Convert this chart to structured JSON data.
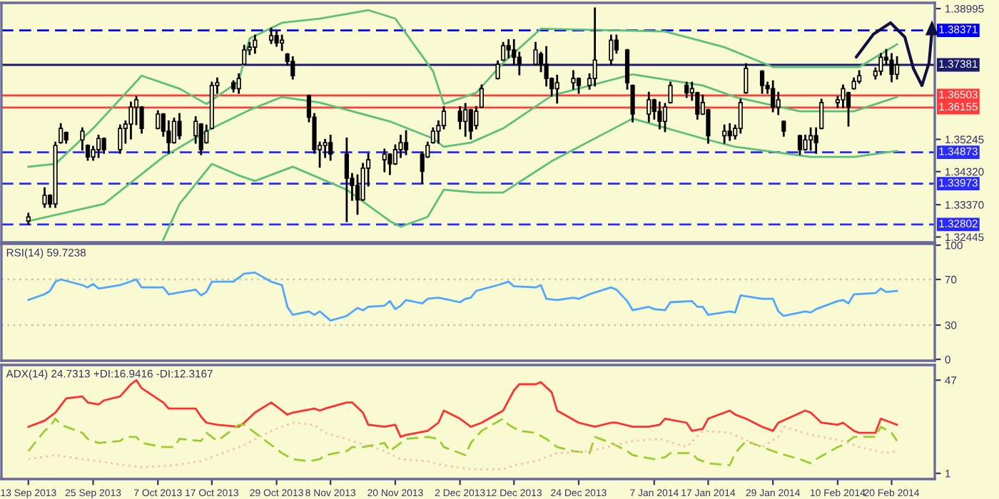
{
  "chart_data": [
    {
      "type": "candlestick",
      "color": "#000000",
      "x": [
        "2013-09-13",
        "2013-09-16",
        "2013-09-17",
        "2013-09-18",
        "2013-09-19",
        "2013-09-20",
        "2013-09-23",
        "2013-09-24",
        "2013-09-25",
        "2013-09-26",
        "2013-09-27",
        "2013-09-30",
        "2013-10-01",
        "2013-10-02",
        "2013-10-03",
        "2013-10-04",
        "2013-10-07",
        "2013-10-08",
        "2013-10-09",
        "2013-10-10",
        "2013-10-11",
        "2013-10-14",
        "2013-10-15",
        "2013-10-16",
        "2013-10-17",
        "2013-10-18",
        "2013-10-21",
        "2013-10-22",
        "2013-10-23",
        "2013-10-24",
        "2013-10-25",
        "2013-10-28",
        "2013-10-29",
        "2013-10-30",
        "2013-10-31",
        "2013-11-01",
        "2013-11-04",
        "2013-11-05",
        "2013-11-06",
        "2013-11-07",
        "2013-11-08",
        "2013-11-11",
        "2013-11-12",
        "2013-11-13",
        "2013-11-14",
        "2013-11-15",
        "2013-11-18",
        "2013-11-19",
        "2013-11-20",
        "2013-11-21",
        "2013-11-22",
        "2013-11-25",
        "2013-11-26",
        "2013-11-27",
        "2013-11-28",
        "2013-11-29",
        "2013-12-02",
        "2013-12-03",
        "2013-12-04",
        "2013-12-05",
        "2013-12-06",
        "2013-12-09",
        "2013-12-10",
        "2013-12-11",
        "2013-12-12",
        "2013-12-13",
        "2013-12-16",
        "2013-12-17",
        "2013-12-18",
        "2013-12-19",
        "2013-12-20",
        "2013-12-23",
        "2013-12-24",
        "2013-12-26",
        "2013-12-27",
        "2013-12-30",
        "2013-12-31",
        "2014-01-02",
        "2014-01-03",
        "2014-01-06",
        "2014-01-07",
        "2014-01-08",
        "2014-01-09",
        "2014-01-10",
        "2014-01-13",
        "2014-01-14",
        "2014-01-15",
        "2014-01-16",
        "2014-01-17",
        "2014-01-20",
        "2014-01-21",
        "2014-01-22",
        "2014-01-23",
        "2014-01-24",
        "2014-01-27",
        "2014-01-28",
        "2014-01-29",
        "2014-01-30",
        "2014-01-31",
        "2014-02-03",
        "2014-02-04",
        "2014-02-05",
        "2014-02-06",
        "2014-02-07",
        "2014-02-10",
        "2014-02-11",
        "2014-02-12",
        "2014-02-13",
        "2014-02-14",
        "2014-02-17",
        "2014-02-18",
        "2014-02-19",
        "2014-02-20",
        "2014-02-21"
      ],
      "ohlc": [
        [
          1.329,
          1.3311,
          1.3282,
          1.3302
        ],
        [
          1.3339,
          1.3384,
          1.3331,
          1.3364
        ],
        [
          1.3364,
          1.3364,
          1.3331,
          1.3339
        ],
        [
          1.3339,
          1.3515,
          1.3331,
          1.3507
        ],
        [
          1.3515,
          1.3568,
          1.3515,
          1.3556
        ],
        [
          1.3544,
          1.3544,
          1.3515,
          1.3523
        ],
        [
          1.3523,
          1.3556,
          1.3495,
          1.3548
        ],
        [
          1.3507,
          1.3507,
          1.3466,
          1.3474
        ],
        [
          1.3474,
          1.3503,
          1.3466,
          1.3495
        ],
        [
          1.3495,
          1.3535,
          1.3474,
          1.3527
        ],
        [
          1.3527,
          1.3527,
          1.3486,
          1.3495
        ],
        [
          1.3495,
          1.3564,
          1.3486,
          1.3556
        ],
        [
          1.3556,
          1.3576,
          1.3515,
          1.3568
        ],
        [
          1.3568,
          1.363,
          1.3527,
          1.3617
        ],
        [
          1.3617,
          1.3646,
          1.3568,
          1.3638
        ],
        [
          1.3617,
          1.3617,
          1.3544,
          1.3556
        ],
        [
          1.3556,
          1.3605,
          1.3556,
          1.3597
        ],
        [
          1.3597,
          1.3597,
          1.3535,
          1.3548
        ],
        [
          1.3548,
          1.3576,
          1.3486,
          1.3515
        ],
        [
          1.3515,
          1.3584,
          1.3515,
          1.3576
        ],
        [
          1.3576,
          1.3597,
          1.3527,
          1.3535
        ],
        [
          1.3535,
          1.3588,
          1.3515,
          1.3576
        ],
        [
          1.3568,
          1.3568,
          1.3482,
          1.3495
        ],
        [
          1.3515,
          1.3564,
          1.3515,
          1.3548
        ],
        [
          1.3556,
          1.3687,
          1.3556,
          1.3679
        ],
        [
          1.3679,
          1.3699,
          1.3658,
          1.3687
        ],
        [
          1.3687,
          1.3691,
          1.3662,
          1.367
        ],
        [
          1.367,
          1.3711,
          1.3658,
          1.3699
        ],
        [
          1.374,
          1.3793,
          1.374,
          1.3781
        ],
        [
          1.3781,
          1.3801,
          1.3769,
          1.3789
        ],
        [
          1.3789,
          1.3822,
          1.3773,
          1.3809
        ],
        [
          1.3809,
          1.3842,
          1.3801,
          1.3822
        ],
        [
          1.3822,
          1.3834,
          1.3793,
          1.3801
        ],
        [
          1.3801,
          1.3822,
          1.3781,
          1.3809
        ],
        [
          1.3769,
          1.3769,
          1.374,
          1.3748
        ],
        [
          1.3748,
          1.376,
          1.3699,
          1.3707
        ],
        [
          1.365,
          1.365,
          1.3576,
          1.3588
        ],
        [
          1.3588,
          1.3597,
          1.3486,
          1.3495
        ],
        [
          1.3495,
          1.3515,
          1.3446,
          1.3507
        ],
        [
          1.3507,
          1.3523,
          1.3474,
          1.3515
        ],
        [
          1.3515,
          1.3535,
          1.3466,
          1.3482
        ],
        [
          1.3482,
          1.3527,
          1.329,
          1.3413
        ],
        [
          1.3413,
          1.3425,
          1.3351,
          1.3392
        ],
        [
          1.3392,
          1.3421,
          1.3311,
          1.3351
        ],
        [
          1.3351,
          1.3454,
          1.3351,
          1.3442
        ],
        [
          1.3442,
          1.3482,
          1.3392,
          1.3466
        ],
        [
          1.3466,
          1.3495,
          1.3433,
          1.3482
        ],
        [
          1.3482,
          1.3482,
          1.3425,
          1.3454
        ],
        [
          1.3454,
          1.3507,
          1.3454,
          1.3495
        ],
        [
          1.3495,
          1.3535,
          1.3474,
          1.3515
        ],
        [
          1.3515,
          1.3548,
          1.3482,
          1.3495
        ],
        [
          1.3482,
          1.3486,
          1.34,
          1.3433
        ],
        [
          1.3474,
          1.3515,
          1.3474,
          1.3507
        ],
        [
          1.3515,
          1.3556,
          1.3515,
          1.3548
        ],
        [
          1.3548,
          1.3576,
          1.3515,
          1.3564
        ],
        [
          1.3564,
          1.3617,
          1.3556,
          1.3605
        ],
        [
          1.3605,
          1.3617,
          1.3556,
          1.3576
        ],
        [
          1.3576,
          1.3626,
          1.3535,
          1.3609
        ],
        [
          1.3609,
          1.3609,
          1.3527,
          1.3548
        ],
        [
          1.3564,
          1.3617,
          1.3556,
          1.3605
        ],
        [
          1.3617,
          1.3679,
          1.3617,
          1.367
        ],
        [
          1.3699,
          1.3748,
          1.3699,
          1.374
        ],
        [
          1.3752,
          1.3801,
          1.3752,
          1.3793
        ],
        [
          1.3793,
          1.3809,
          1.376,
          1.3781
        ],
        [
          1.3781,
          1.3809,
          1.374,
          1.376
        ],
        [
          1.376,
          1.3773,
          1.3711,
          1.374
        ],
        [
          1.374,
          1.3801,
          1.374,
          1.3781
        ],
        [
          1.3769,
          1.3773,
          1.372,
          1.374
        ],
        [
          1.374,
          1.3789,
          1.3679,
          1.3699
        ],
        [
          1.3699,
          1.3699,
          1.365,
          1.367
        ],
        [
          1.367,
          1.3707,
          1.363,
          1.3687
        ],
        [
          1.3687,
          1.372,
          1.367,
          1.3699
        ],
        [
          1.3699,
          1.3699,
          1.3658,
          1.3679
        ],
        [
          1.3679,
          1.3711,
          1.367,
          1.3699
        ],
        [
          1.3699,
          1.39,
          1.3679,
          1.3752
        ],
        [
          1.3752,
          1.3822,
          1.374,
          1.3809
        ],
        [
          1.3809,
          1.3822,
          1.3773,
          1.3781
        ],
        [
          1.3781,
          1.3781,
          1.367,
          1.3687
        ],
        [
          1.3679,
          1.3679,
          1.3576,
          1.3597
        ],
        [
          1.3597,
          1.3658,
          1.3576,
          1.3638
        ],
        [
          1.3638,
          1.3638,
          1.3584,
          1.3605
        ],
        [
          1.3605,
          1.363,
          1.3556,
          1.3576
        ],
        [
          1.3576,
          1.3626,
          1.3548,
          1.3617
        ],
        [
          1.363,
          1.3687,
          1.363,
          1.3679
        ],
        [
          1.3679,
          1.3687,
          1.3646,
          1.3658
        ],
        [
          1.3658,
          1.3687,
          1.3638,
          1.367
        ],
        [
          1.3658,
          1.3658,
          1.3584,
          1.3597
        ],
        [
          1.3597,
          1.365,
          1.3597,
          1.363
        ],
        [
          1.3609,
          1.3609,
          1.3515,
          1.3535
        ],
        [
          1.3535,
          1.3564,
          1.3515,
          1.3548
        ],
        [
          1.3548,
          1.3568,
          1.3523,
          1.3535
        ],
        [
          1.3535,
          1.3564,
          1.3527,
          1.3556
        ],
        [
          1.3556,
          1.3638,
          1.3544,
          1.363
        ],
        [
          1.3658,
          1.374,
          1.3658,
          1.3728
        ],
        [
          1.372,
          1.372,
          1.3658,
          1.3679
        ],
        [
          1.3679,
          1.3687,
          1.3658,
          1.367
        ],
        [
          1.367,
          1.3691,
          1.3605,
          1.3617
        ],
        [
          1.3617,
          1.3658,
          1.3597,
          1.3638
        ],
        [
          1.3576,
          1.3576,
          1.3535,
          1.3548
        ],
        [
          1.3535,
          1.3535,
          1.3482,
          1.3495
        ],
        [
          1.3495,
          1.3535,
          1.3495,
          1.3523
        ],
        [
          1.3523,
          1.3556,
          1.3495,
          1.3535
        ],
        [
          1.3535,
          1.3556,
          1.3486,
          1.3515
        ],
        [
          1.3556,
          1.3638,
          1.3556,
          1.363
        ],
        [
          1.363,
          1.3646,
          1.3617,
          1.3638
        ],
        [
          1.3638,
          1.3679,
          1.3617,
          1.367
        ],
        [
          1.3658,
          1.3658,
          1.3564,
          1.3617
        ],
        [
          1.367,
          1.3699,
          1.367,
          1.3691
        ],
        [
          1.3691,
          1.372,
          1.3687,
          1.3707
        ],
        [
          1.3707,
          1.3728,
          1.3699,
          1.372
        ],
        [
          1.372,
          1.3769,
          1.3711,
          1.376
        ],
        [
          1.376,
          1.3781,
          1.374,
          1.3752
        ],
        [
          1.3752,
          1.3769,
          1.3691,
          1.3711
        ],
        [
          1.3711,
          1.376,
          1.3699,
          1.3738
        ]
      ],
      "series": [
        {
          "type": "line",
          "color": "#5cbf7a",
          "x": [
            "2013-09-13",
            "2013-09-18",
            "2013-09-25",
            "2013-10-04",
            "2013-10-11",
            "2013-10-16",
            "2013-10-22",
            "2013-10-24",
            "2013-10-30",
            "2013-11-06",
            "2013-11-15",
            "2013-11-20",
            "2013-11-27",
            "2013-11-29",
            "2013-12-05",
            "2013-12-10",
            "2013-12-17",
            "2014-01-09",
            "2014-01-20",
            "2014-01-29",
            "2014-02-14",
            "2014-02-21"
          ],
          "values": [
            1.3446,
            1.3454,
            1.3556,
            1.3707,
            1.367,
            1.3626,
            1.3691,
            1.3814,
            1.3859,
            1.3871,
            1.3895,
            1.3871,
            1.372,
            1.3626,
            1.3658,
            1.3744,
            1.3842,
            1.3834,
            1.3789,
            1.3732,
            1.3732,
            1.3797
          ]
        },
        {
          "type": "line",
          "color": "#5cbf7a",
          "x": [
            "2013-09-13",
            "2013-09-19",
            "2013-09-27",
            "2013-10-08",
            "2013-10-17",
            "2013-10-24",
            "2013-10-30",
            "2013-11-06",
            "2013-11-19",
            "2013-11-27",
            "2013-11-29",
            "2013-12-04",
            "2013-12-10",
            "2013-12-19",
            "2014-01-03",
            "2014-01-16",
            "2014-01-22",
            "2014-02-03",
            "2014-02-13",
            "2014-02-21"
          ],
          "values": [
            1.329,
            1.3311,
            1.3339,
            1.3474,
            1.3556,
            1.3609,
            1.3646,
            1.363,
            1.3576,
            1.3527,
            1.3503,
            1.3515,
            1.3556,
            1.365,
            1.3711,
            1.3679,
            1.3646,
            1.3605,
            1.3605,
            1.3646
          ]
        },
        {
          "type": "line",
          "color": "#5cbf7a",
          "x": [
            "2013-10-08",
            "2013-10-11",
            "2013-10-17",
            "2013-10-22",
            "2013-10-25",
            "2013-11-01",
            "2013-11-11",
            "2013-11-19",
            "2013-11-21",
            "2013-11-26",
            "2013-11-29",
            "2013-12-05",
            "2013-12-10",
            "2013-12-19",
            "2014-01-03",
            "2014-01-16",
            "2014-01-22",
            "2014-02-05",
            "2014-02-13",
            "2014-02-21"
          ],
          "values": [
            1.3237,
            1.3339,
            1.3454,
            1.3421,
            1.3405,
            1.3446,
            1.338,
            1.329,
            1.3274,
            1.3302,
            1.338,
            1.3372,
            1.3372,
            1.3462,
            1.3584,
            1.3527,
            1.3503,
            1.3474,
            1.3474,
            1.3491
          ]
        }
      ],
      "ref_lines": [
        {
          "axis": "y",
          "value": 1.38371,
          "label": "1.38371",
          "color": "#0000ff",
          "line_style": "dashed"
        },
        {
          "axis": "y",
          "value": 1.37381,
          "label": "1.37381",
          "color": "#1a1a6e",
          "line_style": "solid"
        },
        {
          "axis": "y",
          "value": 1.36503,
          "label": "1.36503",
          "color": "#ff3b3b",
          "line_style": "solid"
        },
        {
          "axis": "y",
          "value": 1.36155,
          "label": "1.36155",
          "color": "#ff3b3b",
          "line_style": "solid"
        },
        {
          "axis": "y",
          "value": 1.34873,
          "label": "1.34873",
          "color": "#2a2aff",
          "line_style": "dashed"
        },
        {
          "axis": "y",
          "value": 1.33973,
          "label": "1.33973",
          "color": "#2a2aff",
          "line_style": "dashed"
        },
        {
          "axis": "y",
          "value": 1.32802,
          "label": "1.32802",
          "color": "#2a2aff",
          "line_style": "dashed"
        }
      ],
      "xlim": [
        "2013-09-08",
        "2014-02-28"
      ],
      "ylim": [
        1.3229,
        1.3916
      ],
      "yticks": [
        1.38995,
        1.35245,
        {
          "value": 1.3432,
          "label": "1.34320"
        },
        {
          "value": 1.3337,
          "label": "1.33370"
        },
        1.32445
      ],
      "tick_labels": "y"
    },
    {
      "type": "line",
      "annotations": [
        "RSI(14) 59.7238"
      ],
      "series": [
        {
          "color": "#4da6ff",
          "x": [
            "2013-09-13",
            "2013-09-16",
            "2013-09-17",
            "2013-09-18",
            "2013-09-19",
            "2013-09-23",
            "2013-09-24",
            "2013-09-25",
            "2013-09-26",
            "2013-09-30",
            "2013-10-03",
            "2013-10-04",
            "2013-10-08",
            "2013-10-09",
            "2013-10-14",
            "2013-10-15",
            "2013-10-16",
            "2013-10-17",
            "2013-10-21",
            "2013-10-23",
            "2013-10-25",
            "2013-10-28",
            "2013-10-30",
            "2013-10-31",
            "2013-11-01",
            "2013-11-04",
            "2013-11-05",
            "2013-11-06",
            "2013-11-07",
            "2013-11-08",
            "2013-11-11",
            "2013-11-13",
            "2013-11-14",
            "2013-11-15",
            "2013-11-18",
            "2013-11-19",
            "2013-11-20",
            "2013-11-21",
            "2013-11-22",
            "2013-11-25",
            "2013-11-26",
            "2013-11-28",
            "2013-11-29",
            "2013-12-02",
            "2013-12-03",
            "2013-12-04",
            "2013-12-05",
            "2013-12-09",
            "2013-12-11",
            "2013-12-12",
            "2013-12-16",
            "2013-12-17",
            "2013-12-18",
            "2013-12-20",
            "2013-12-23",
            "2013-12-24",
            "2013-12-26",
            "2013-12-30",
            "2013-12-31",
            "2014-01-02",
            "2014-01-03",
            "2014-01-06",
            "2014-01-07",
            "2014-01-09",
            "2014-01-10",
            "2014-01-14",
            "2014-01-15",
            "2014-01-16",
            "2014-01-17",
            "2014-01-21",
            "2014-01-22",
            "2014-01-23",
            "2014-01-27",
            "2014-01-28",
            "2014-01-29",
            "2014-01-30",
            "2014-01-31",
            "2014-02-04",
            "2014-02-05",
            "2014-02-06",
            "2014-02-10",
            "2014-02-11",
            "2014-02-12",
            "2014-02-13",
            "2014-02-17",
            "2014-02-18",
            "2014-02-19",
            "2014-02-21"
          ],
          "values": [
            52,
            57,
            60,
            68,
            70,
            65,
            63,
            66,
            62,
            65,
            70,
            63,
            63,
            57,
            61,
            56,
            59,
            68,
            68,
            75,
            76,
            68,
            65,
            46,
            39,
            42,
            39,
            42,
            38,
            34,
            38,
            45,
            43,
            46,
            47,
            51,
            44,
            47,
            52,
            49,
            53,
            54,
            53,
            50,
            53,
            54,
            60,
            65,
            68,
            64,
            63,
            65,
            53,
            52,
            54,
            53,
            57,
            63,
            61,
            51,
            43,
            46,
            44,
            43,
            50,
            51,
            46,
            46,
            39,
            42,
            41,
            56,
            53,
            53,
            53,
            42,
            38,
            42,
            41,
            44,
            51,
            52,
            49,
            57,
            58,
            62,
            59,
            60
          ]
        }
      ],
      "ref_lines": [
        {
          "axis": "y",
          "value": 70,
          "color": "#c8c8b0",
          "line_style": "dotted"
        },
        {
          "axis": "y",
          "value": 30,
          "color": "#c8c8b0",
          "line_style": "dotted"
        }
      ],
      "xlim": [
        "2013-09-08",
        "2014-02-28"
      ],
      "ylim": [
        -1.2,
        101.2
      ],
      "yticks": [
        0,
        30,
        70,
        100
      ],
      "tick_labels": "y"
    },
    {
      "type": "line",
      "annotations": [
        "ADX(14) 24.7313 +DI:16.9416 -DI:12.3167"
      ],
      "series": [
        {
          "color": "#ff3030",
          "line_style": "solid",
          "x": [
            "2013-09-13",
            "2013-09-16",
            "2013-09-18",
            "2013-09-20",
            "2013-09-23",
            "2013-09-24",
            "2013-09-26",
            "2013-09-27",
            "2013-09-30",
            "2013-10-02",
            "2013-10-03",
            "2013-10-04",
            "2013-10-08",
            "2013-10-09",
            "2013-10-10",
            "2013-10-14",
            "2013-10-15",
            "2013-10-16",
            "2013-10-18",
            "2013-10-22",
            "2013-10-23",
            "2013-10-25",
            "2013-10-28",
            "2013-10-30",
            "2013-10-31",
            "2013-11-01",
            "2013-11-05",
            "2013-11-06",
            "2013-11-07",
            "2013-11-11",
            "2013-11-12",
            "2013-11-14",
            "2013-11-15",
            "2013-11-18",
            "2013-11-20",
            "2013-11-21",
            "2013-11-22",
            "2013-11-26",
            "2013-11-28",
            "2013-11-29",
            "2013-12-02",
            "2013-12-04",
            "2013-12-06",
            "2013-12-10",
            "2013-12-12",
            "2013-12-13",
            "2013-12-16",
            "2013-12-17",
            "2013-12-19",
            "2013-12-20",
            "2013-12-24",
            "2013-12-27",
            "2013-12-30",
            "2013-12-31",
            "2014-01-03",
            "2014-01-06",
            "2014-01-08",
            "2014-01-09",
            "2014-01-13",
            "2014-01-14",
            "2014-01-16",
            "2014-01-17",
            "2014-01-21",
            "2014-01-22",
            "2014-01-24",
            "2014-01-27",
            "2014-01-29",
            "2014-01-30",
            "2014-02-04",
            "2014-02-05",
            "2014-02-07",
            "2014-02-10",
            "2014-02-11",
            "2014-02-13",
            "2014-02-14",
            "2014-02-17",
            "2014-02-18",
            "2014-02-20",
            "2014-02-21"
          ],
          "values": [
            24,
            27,
            31,
            38,
            39,
            36,
            35,
            37,
            39,
            45,
            47,
            43,
            36,
            33,
            33,
            33,
            29,
            26,
            25,
            24,
            26,
            31,
            36,
            32,
            30,
            31,
            33,
            32,
            33,
            36,
            36,
            31,
            25,
            24,
            25,
            19,
            20,
            22,
            26,
            32,
            28,
            24,
            26,
            32,
            42,
            45,
            45,
            46,
            41,
            32,
            26,
            24,
            26,
            26,
            24,
            24,
            25,
            28,
            26,
            22,
            23,
            28,
            32,
            30,
            28,
            24,
            22,
            26,
            32,
            31,
            26,
            25,
            26,
            22,
            21,
            21,
            28,
            26,
            25
          ]
        },
        {
          "color": "#9acd32",
          "line_style": "dashed",
          "x": [
            "2013-09-13",
            "2013-09-16",
            "2013-09-17",
            "2013-09-18",
            "2013-09-19",
            "2013-09-23",
            "2013-09-24",
            "2013-09-26",
            "2013-09-30",
            "2013-10-01",
            "2013-10-03",
            "2013-10-04",
            "2013-10-08",
            "2013-10-10",
            "2013-10-11",
            "2013-10-15",
            "2013-10-16",
            "2013-10-18",
            "2013-10-22",
            "2013-10-23",
            "2013-10-25",
            "2013-10-28",
            "2013-10-30",
            "2013-11-01",
            "2013-11-04",
            "2013-11-06",
            "2013-11-07",
            "2013-11-11",
            "2013-11-12",
            "2013-11-14",
            "2013-11-18",
            "2013-11-19",
            "2013-11-21",
            "2013-11-22",
            "2013-11-26",
            "2013-11-28",
            "2013-11-29",
            "2013-12-03",
            "2013-12-04",
            "2013-12-06",
            "2013-12-10",
            "2013-12-11",
            "2013-12-13",
            "2013-12-16",
            "2013-12-18",
            "2013-12-20",
            "2013-12-23",
            "2013-12-26",
            "2013-12-27",
            "2013-12-30",
            "2014-01-02",
            "2014-01-03",
            "2014-01-07",
            "2014-01-09",
            "2014-01-10",
            "2014-01-14",
            "2014-01-15",
            "2014-01-17",
            "2014-01-21",
            "2014-01-22",
            "2014-01-24",
            "2014-01-27",
            "2014-01-29",
            "2014-01-30",
            "2014-02-03",
            "2014-02-05",
            "2014-02-06",
            "2014-02-10",
            "2014-02-11",
            "2014-02-13",
            "2014-02-17",
            "2014-02-18",
            "2014-02-20",
            "2014-02-21"
          ],
          "values": [
            12,
            22,
            24,
            28,
            25,
            21,
            18,
            16,
            17,
            19,
            19,
            16,
            14,
            14,
            18,
            17,
            21,
            17,
            25,
            25,
            21,
            15,
            11,
            8,
            7,
            8,
            10,
            12,
            14,
            14,
            16,
            12,
            16,
            18,
            19,
            18,
            14,
            10,
            16,
            22,
            28,
            25,
            22,
            21,
            18,
            14,
            12,
            11,
            19,
            16,
            12,
            10,
            8,
            9,
            11,
            11,
            8,
            6,
            5,
            11,
            17,
            14,
            12,
            11,
            8,
            6,
            8,
            14,
            15,
            19,
            19,
            24,
            21,
            17
          ]
        },
        {
          "color": "#f2c2aa",
          "line_style": "dotted",
          "x": [
            "2013-09-13",
            "2013-09-18",
            "2013-09-23",
            "2013-09-26",
            "2013-10-01",
            "2013-10-04",
            "2013-10-10",
            "2013-10-15",
            "2013-10-18",
            "2013-10-23",
            "2013-10-28",
            "2013-11-01",
            "2013-11-05",
            "2013-11-07",
            "2013-11-12",
            "2013-11-18",
            "2013-11-21",
            "2013-11-26",
            "2013-11-29",
            "2013-12-04",
            "2013-12-10",
            "2013-12-12",
            "2013-12-16",
            "2013-12-20",
            "2013-12-26",
            "2013-12-31",
            "2014-01-03",
            "2014-01-08",
            "2014-01-13",
            "2014-01-16",
            "2014-01-21",
            "2014-01-27",
            "2014-01-30",
            "2014-01-31",
            "2014-02-05",
            "2014-02-11",
            "2014-02-14",
            "2014-02-19",
            "2014-02-21"
          ],
          "values": [
            8,
            10,
            8,
            7,
            5,
            4,
            5,
            7,
            10,
            15,
            22,
            26,
            25,
            21,
            17,
            12,
            8,
            7,
            5,
            3,
            3,
            5,
            7,
            11,
            12,
            15,
            17,
            18,
            14,
            22,
            21,
            14,
            19,
            24,
            20,
            17,
            14,
            11,
            12
          ]
        }
      ],
      "xlim": [
        "2013-09-08",
        "2014-02-28"
      ],
      "ylim": [
        -1.8,
        54.5
      ],
      "yticks": [
        1,
        47
      ],
      "xticks": [
        {
          "value": "2013-09-13",
          "label": "13 Sep 2013"
        },
        {
          "value": "2013-09-25",
          "label": "25 Sep 2013"
        },
        {
          "value": "2013-10-07",
          "label": "7 Oct 2013"
        },
        {
          "value": "2013-10-17",
          "label": "17 Oct 2013"
        },
        {
          "value": "2013-10-29",
          "label": "29 Oct 2013"
        },
        {
          "value": "2013-11-08",
          "label": "8 Nov 2013"
        },
        {
          "value": "2013-11-20",
          "label": "20 Nov 2013"
        },
        {
          "value": "2013-12-02",
          "label": "2 Dec 2013"
        },
        {
          "value": "2013-12-12",
          "label": "12 Dec 2013"
        },
        {
          "value": "2013-12-24",
          "label": "24 Dec 2013"
        },
        {
          "value": "2014-01-07",
          "label": "7 Jan 2014"
        },
        {
          "value": "2014-01-17",
          "label": "17 Jan 2014"
        },
        {
          "value": "2014-01-29",
          "label": "29 Jan 2014"
        },
        {
          "value": "2014-02-10",
          "label": "10 Feb 2014"
        },
        {
          "value": "2014-02-20",
          "label": "20 Feb 2014"
        }
      ]
    }
  ]
}
